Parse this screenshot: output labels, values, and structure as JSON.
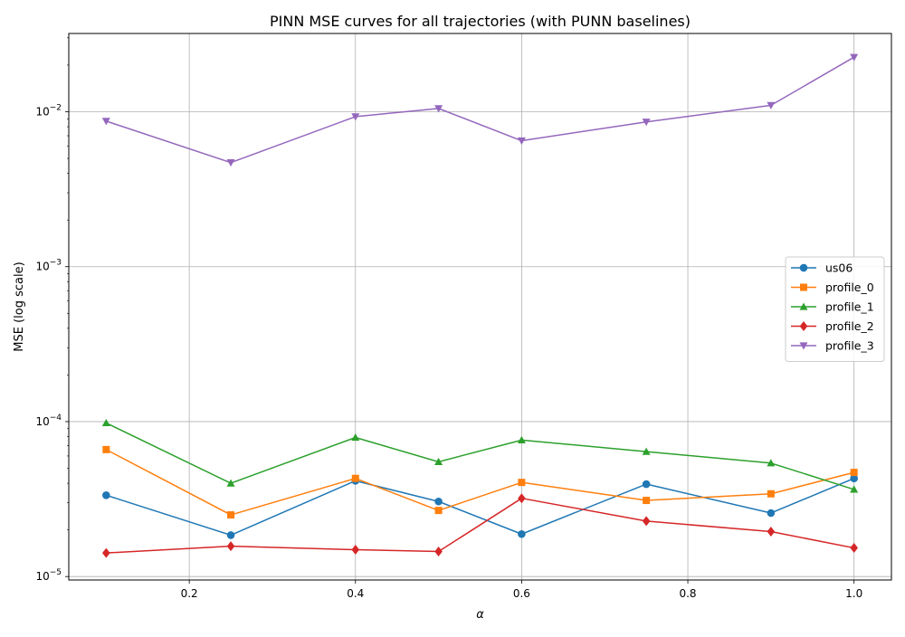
{
  "chart_data": {
    "type": "line",
    "title": "PINN MSE curves for all trajectories (with PUNN baselines)",
    "xlabel": "α",
    "ylabel": "MSE (log scale)",
    "yscale": "log",
    "xlim": [
      0.055,
      1.045
    ],
    "ylim": [
      9.5e-06,
      0.032
    ],
    "grid": true,
    "legend_position": "center-right",
    "x": [
      0.1,
      0.25,
      0.4,
      0.5,
      0.6,
      0.75,
      0.9,
      1.0
    ],
    "xticks": [
      {
        "value": 0.2,
        "label": "0.2"
      },
      {
        "value": 0.4,
        "label": "0.4"
      },
      {
        "value": 0.6,
        "label": "0.6"
      },
      {
        "value": 0.8,
        "label": "0.8"
      },
      {
        "value": 1.0,
        "label": "1.0"
      }
    ],
    "yticks": [
      {
        "value": 1e-05,
        "base": "10",
        "exp": "−5"
      },
      {
        "value": 0.0001,
        "base": "10",
        "exp": "−4"
      },
      {
        "value": 0.001,
        "base": "10",
        "exp": "−3"
      },
      {
        "value": 0.01,
        "base": "10",
        "exp": "−2"
      }
    ],
    "series": [
      {
        "name": "us06",
        "color": "#1f77b4",
        "marker": "circle",
        "values": [
          3.35e-05,
          1.85e-05,
          4.15e-05,
          3.05e-05,
          1.88e-05,
          3.95e-05,
          2.57e-05,
          4.3e-05
        ]
      },
      {
        "name": "profile_0",
        "color": "#ff7f0e",
        "marker": "square",
        "values": [
          6.6e-05,
          2.5e-05,
          4.3e-05,
          2.67e-05,
          4.05e-05,
          3.1e-05,
          3.42e-05,
          4.7e-05
        ]
      },
      {
        "name": "profile_1",
        "color": "#2ca02c",
        "marker": "triangle-up",
        "values": [
          9.8e-05,
          4e-05,
          7.9e-05,
          5.5e-05,
          7.6e-05,
          6.4e-05,
          5.4e-05,
          3.65e-05
        ]
      },
      {
        "name": "profile_2",
        "color": "#d62728",
        "marker": "diamond",
        "values": [
          1.42e-05,
          1.57e-05,
          1.49e-05,
          1.45e-05,
          3.2e-05,
          2.28e-05,
          1.95e-05,
          1.53e-05
        ]
      },
      {
        "name": "profile_3",
        "color": "#9467bd",
        "marker": "triangle-down",
        "values": [
          0.0087,
          0.0047,
          0.0093,
          0.0105,
          0.0065,
          0.0086,
          0.011,
          0.0225
        ]
      }
    ]
  }
}
